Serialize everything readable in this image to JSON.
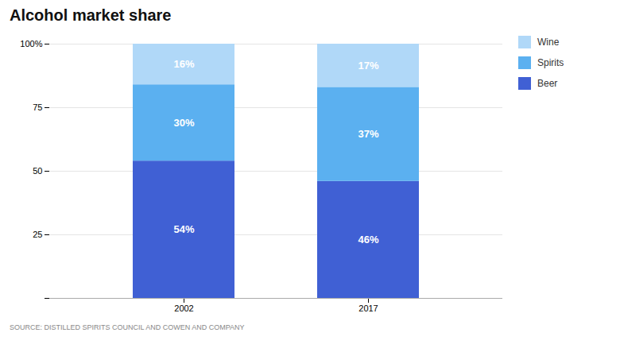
{
  "chart_data": {
    "type": "bar",
    "title": "Alcohol market share",
    "source": "SOURCE: DISTILLED SPIRITS COUNCIL AND COWEN AND COMPANY",
    "categories": [
      "2002",
      "2017"
    ],
    "series": [
      {
        "name": "Beer",
        "color": "#4060d4",
        "values": [
          54,
          46
        ],
        "value_labels": [
          "54%",
          "46%"
        ]
      },
      {
        "name": "Spirits",
        "color": "#5bb0f0",
        "values": [
          30,
          37
        ],
        "value_labels": [
          "30%",
          "37%"
        ]
      },
      {
        "name": "Wine",
        "color": "#b0d8f8",
        "values": [
          16,
          17
        ],
        "value_labels": [
          "16%",
          "17%"
        ]
      }
    ],
    "stacked": true,
    "data_labels": true,
    "ylim": [
      0,
      100
    ],
    "yticks": [
      {
        "value": 0,
        "label": ""
      },
      25,
      50,
      75,
      {
        "value": 100,
        "label": "100%"
      }
    ],
    "grid": true,
    "legend": "right"
  }
}
